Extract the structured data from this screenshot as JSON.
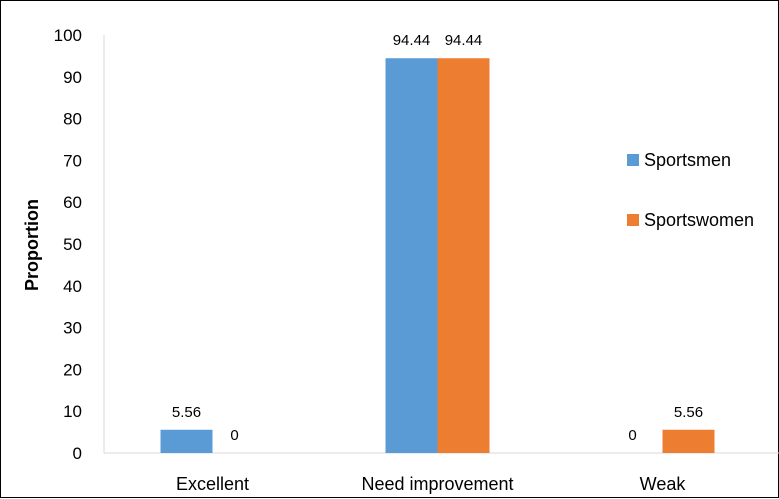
{
  "chart_data": {
    "type": "bar",
    "categories": [
      "Excellent",
      "Need improvement",
      "Weak"
    ],
    "series": [
      {
        "name": "Sportsmen",
        "values": [
          5.56,
          94.44,
          0
        ],
        "color": "#5B9BD5"
      },
      {
        "name": "Sportswomen",
        "values": [
          0,
          94.44,
          5.56
        ],
        "color": "#ED7D31"
      }
    ],
    "value_labels": [
      [
        "5.56",
        "94.44",
        "0"
      ],
      [
        "0",
        "94.44",
        "5.56"
      ]
    ],
    "ylabel": "Proportion",
    "xlabel": "",
    "ylim": [
      0,
      100
    ],
    "ytick_step": 10,
    "grid": false,
    "legend_position": "right"
  }
}
